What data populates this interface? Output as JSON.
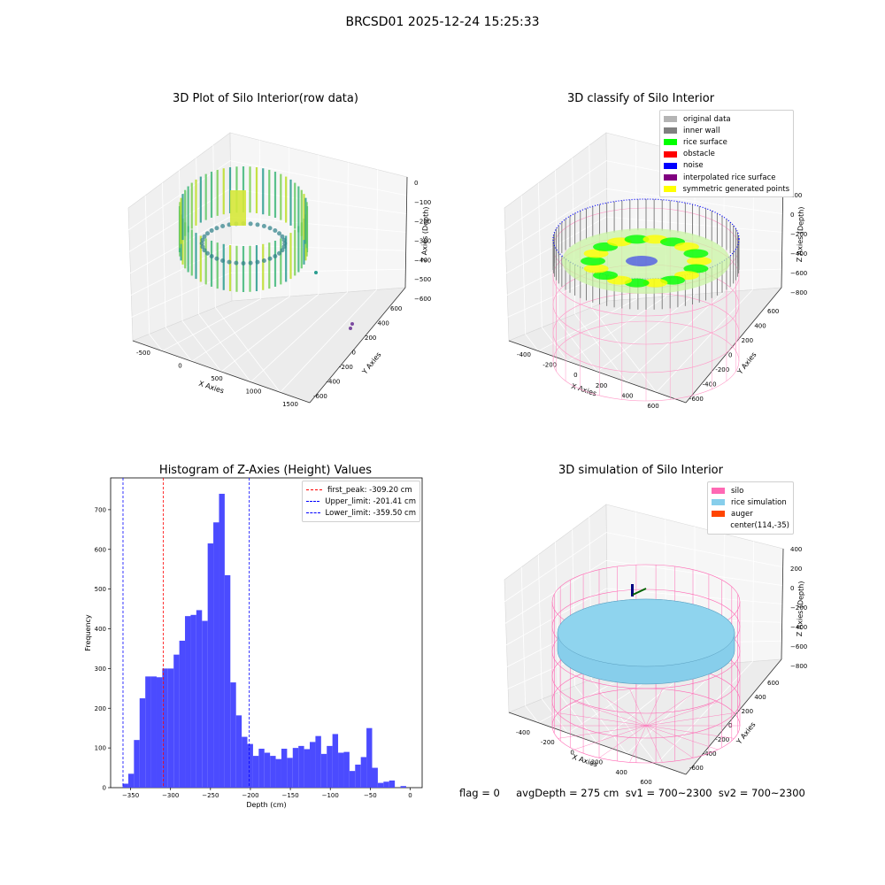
{
  "suptitle": "BRCSD01 2025-12-24 15:25:33",
  "panel1": {
    "title": "3D Plot of Silo Interior(row data)",
    "xlabel": "X Axies",
    "ylabel": "Y Axies",
    "zlabel": "Z Axies (Depth)",
    "xticks": [
      "-500",
      "0",
      "500",
      "1000",
      "1500"
    ],
    "yticks": [
      "-600",
      "-400",
      "-200",
      "0",
      "200",
      "400",
      "600"
    ],
    "zticks": [
      "0",
      "−100",
      "−200",
      "−300",
      "−400",
      "−500",
      "−600"
    ]
  },
  "panel2": {
    "title": "3D classify of Silo Interior",
    "xlabel": "X Axies",
    "ylabel": "Y Axies",
    "zlabel": "Z Axies (Depth)",
    "xticks": [
      "-400",
      "-200",
      "0",
      "200",
      "400",
      "600"
    ],
    "yticks": [
      "-600",
      "-400",
      "-200",
      "0",
      "200",
      "400",
      "600"
    ],
    "zticks": [
      "200",
      "0",
      "−200",
      "−400",
      "−600",
      "−800"
    ],
    "legend": [
      {
        "label": "original data",
        "color": "#b4b4b4"
      },
      {
        "label": "inner wall",
        "color": "#808080"
      },
      {
        "label": "rice surface",
        "color": "#00ff00"
      },
      {
        "label": "obstacle",
        "color": "#ff0000"
      },
      {
        "label": "noise",
        "color": "#0000ff"
      },
      {
        "label": "interpolated rice surface",
        "color": "#800080"
      },
      {
        "label": "symmetric generated points",
        "color": "#ffff00"
      }
    ]
  },
  "panel4": {
    "title": "3D simulation of Silo Interior",
    "xlabel": "X Axies",
    "ylabel": "Y Axies",
    "zlabel": "Z Axies (Depth)",
    "xticks": [
      "-400",
      "-200",
      "0",
      "200",
      "400",
      "600"
    ],
    "yticks": [
      "-600",
      "-400",
      "-200",
      "0",
      "200",
      "400",
      "600"
    ],
    "zticks": [
      "400",
      "200",
      "0",
      "−200",
      "−400",
      "−600",
      "−800"
    ],
    "legend": [
      {
        "label": "silo",
        "color": "#ff69b4"
      },
      {
        "label": "rice simulation",
        "color": "#87ceeb"
      },
      {
        "label": "auger",
        "color": "#ff4500"
      },
      {
        "label": "center(114,-35)",
        "color": ""
      }
    ]
  },
  "footer": "flag = 0     avgDepth = 275 cm  sv1 = 700~2300  sv2 = 700~2300",
  "chart_data": {
    "type": "bar",
    "title": "Histogram of Z-Axies (Height) Values",
    "xlabel": "Depth (cm)",
    "ylabel": "Frequency",
    "xlim": [
      -375,
      15
    ],
    "ylim": [
      0,
      780
    ],
    "xticks": [
      -350,
      -300,
      -250,
      -200,
      -150,
      -100,
      -50,
      0
    ],
    "yticks": [
      0,
      100,
      200,
      300,
      400,
      500,
      600,
      700
    ],
    "bin_width": 7.1,
    "bin_start": -360,
    "values": [
      10,
      35,
      120,
      225,
      280,
      280,
      278,
      300,
      300,
      335,
      370,
      432,
      435,
      447,
      420,
      615,
      668,
      740,
      535,
      265,
      182,
      128,
      110,
      80,
      98,
      88,
      80,
      72,
      98,
      75,
      100,
      105,
      97,
      115,
      130,
      85,
      105,
      135,
      88,
      90,
      42,
      58,
      77,
      150,
      50,
      12,
      15,
      18,
      0,
      4
    ],
    "vlines": [
      {
        "label": "first_peak: -309.20 cm",
        "x": -309.2,
        "color": "#ff0000"
      },
      {
        "label": "Upper_limit: -201.41 cm",
        "x": -201.41,
        "color": "#0000ff"
      },
      {
        "label": "Lower_limit: -359.50 cm",
        "x": -359.5,
        "color": "#0000ff"
      }
    ],
    "bar_color": "#4b4bff"
  }
}
